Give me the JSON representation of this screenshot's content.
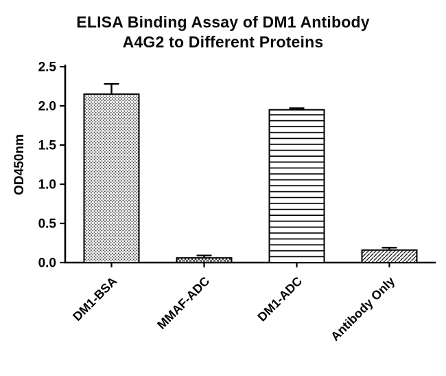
{
  "title_line1": "ELISA Binding Assay of DM1 Antibody",
  "title_line2": "A4G2 to Different Proteins",
  "chart_data": {
    "type": "bar",
    "title": "ELISA Binding Assay of DM1 Antibody A4G2 to Different Proteins",
    "title_lines": [
      "ELISA Binding Assay of DM1 Antibody",
      "A4G2 to Different Proteins"
    ],
    "categories": [
      "DM1-BSA",
      "MMAF-ADC",
      "DM1-ADC",
      "Antibody Only"
    ],
    "values": [
      2.15,
      0.06,
      1.95,
      0.16
    ],
    "errors": [
      0.13,
      0.03,
      0.02,
      0.03
    ],
    "patterns": [
      "dots",
      "crosshatch",
      "horizontal-lines",
      "diagonal-hatch"
    ],
    "xlabel": "",
    "ylabel": "OD450nm",
    "ylim": [
      0,
      2.5
    ],
    "yticks": [
      0.0,
      0.5,
      1.0,
      1.5,
      2.0,
      2.5
    ],
    "grid": "off",
    "legend": "none",
    "bar_fill": "#ffffff",
    "outline_color": "#000000",
    "pattern_color": "#333333"
  }
}
